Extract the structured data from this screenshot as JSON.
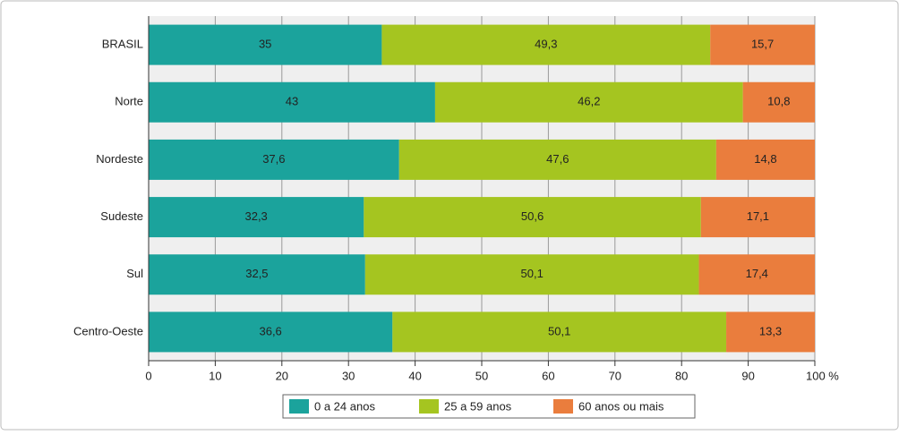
{
  "chart_data": {
    "type": "stacked-barh",
    "categories": [
      "BRASIL",
      "Norte",
      "Nordeste",
      "Sudeste",
      "Sul",
      "Centro-Oeste"
    ],
    "series": [
      {
        "name": "0 a 24 anos",
        "color": "#1ba39c",
        "values": [
          35,
          43,
          37.6,
          32.3,
          32.5,
          36.6
        ],
        "value_labels": [
          "35",
          "43",
          "37,6",
          "32,3",
          "32,5",
          "36,6"
        ]
      },
      {
        "name": "25 a 59 anos",
        "color": "#a5c520",
        "values": [
          49.3,
          46.2,
          47.6,
          50.6,
          50.1,
          50.1
        ],
        "value_labels": [
          "49,3",
          "46,2",
          "47,6",
          "50,6",
          "50,1",
          "50,1"
        ]
      },
      {
        "name": "60 anos ou mais",
        "color": "#ea7d3d",
        "values": [
          15.7,
          10.8,
          14.8,
          17.1,
          17.4,
          13.3
        ],
        "value_labels": [
          "15,7",
          "10,8",
          "14,8",
          "17,1",
          "17,4",
          "13,3"
        ]
      }
    ],
    "xlim": [
      0,
      100
    ],
    "xticks": [
      0,
      10,
      20,
      30,
      40,
      50,
      60,
      70,
      80,
      90,
      {
        "value": 100,
        "label": "100 %"
      }
    ],
    "grid": true,
    "legend": "bottom"
  }
}
